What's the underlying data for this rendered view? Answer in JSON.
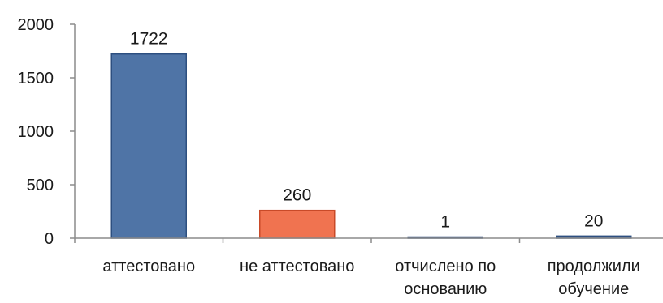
{
  "chart_data": {
    "type": "bar",
    "categories": [
      [
        "аттестовано"
      ],
      [
        "не аттестовано"
      ],
      [
        "отчислено по",
        "основанию"
      ],
      [
        "продолжили",
        "обучение"
      ]
    ],
    "values": [
      1722,
      260,
      1,
      20
    ],
    "data_labels": [
      "1722",
      "260",
      "1",
      "20"
    ],
    "ylim": [
      0,
      2000
    ],
    "yticks": [
      "0",
      "500",
      "1000",
      "1500",
      "2000"
    ],
    "grid": false,
    "colors": [
      "#4f74a6",
      "#f07350",
      "#4f74a6",
      "#4f74a6"
    ],
    "border_colors": [
      "#2d4f80",
      "#c94a28",
      "#2d4f80",
      "#2d4f80"
    ]
  }
}
